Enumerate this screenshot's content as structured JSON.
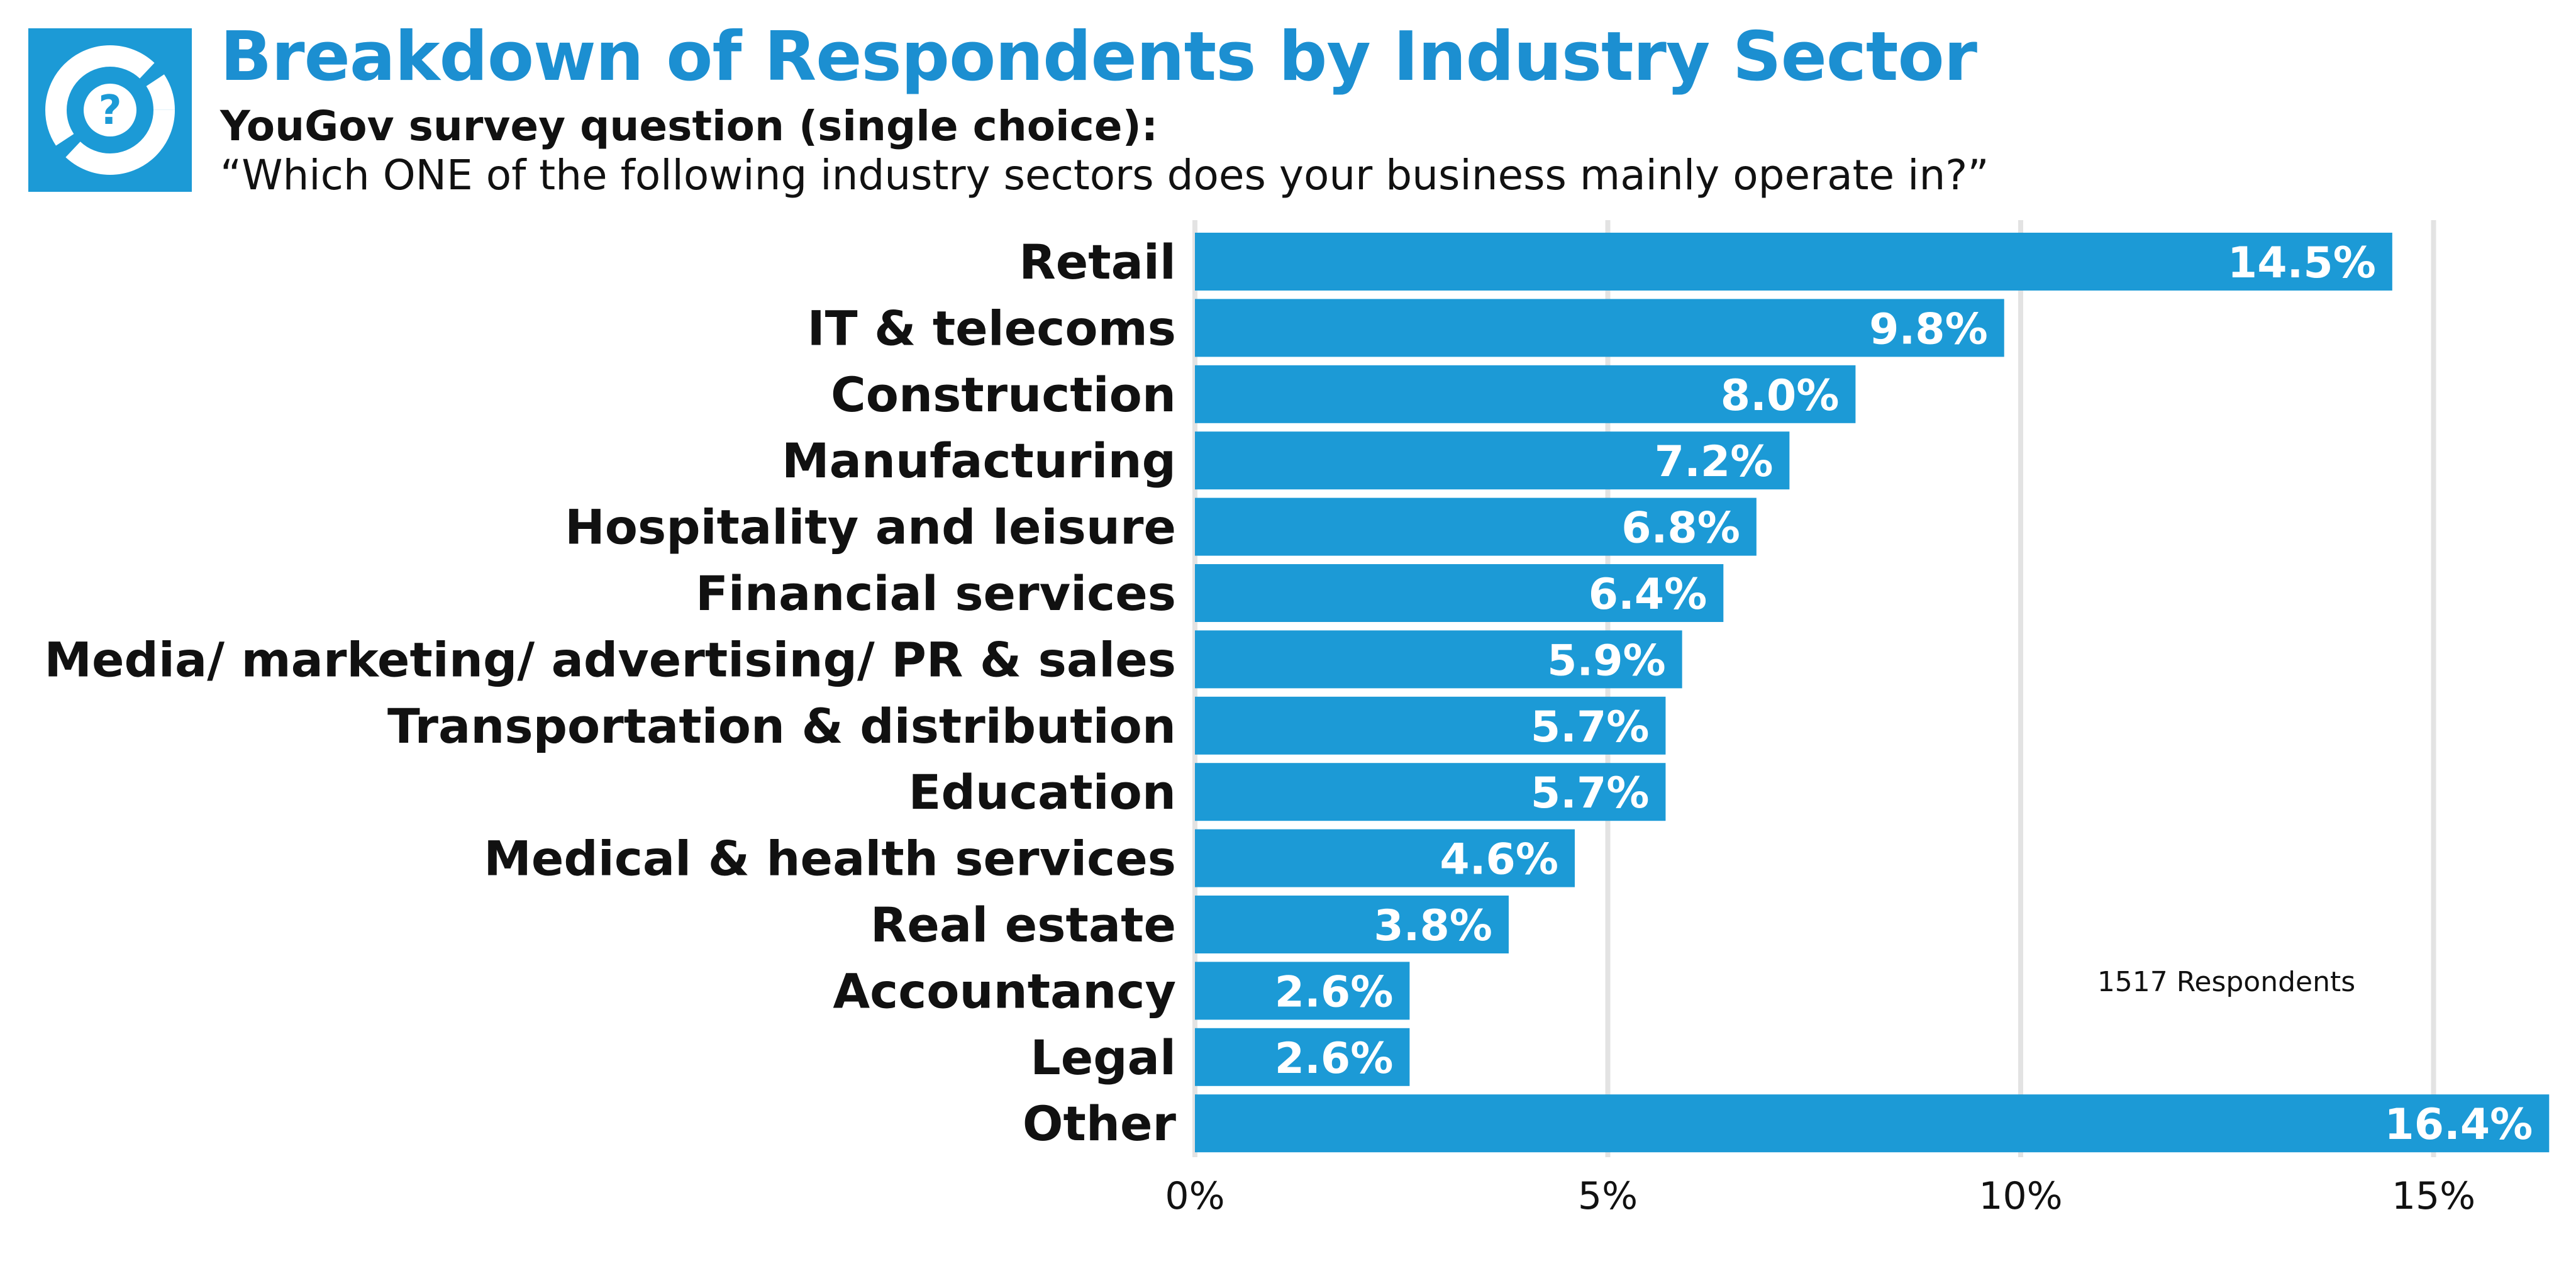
{
  "header": {
    "title": "Breakdown of Respondents by Industry Sector",
    "subtitle": "YouGov survey question (single choice):",
    "question": "“Which ONE of the following industry sectors does your business mainly operate in?”"
  },
  "colors": {
    "bar": "#1c9ad6",
    "title": "#1c8fd1",
    "logo_bg": "#1c9ad6",
    "grid": "#e3e3e3",
    "bar_label": "#ffffff",
    "text": "#111111"
  },
  "icons": {
    "logo": "question-donut-icon"
  },
  "chart_data": {
    "type": "bar",
    "orientation": "horizontal",
    "title": "Breakdown of Respondents by Industry Sector",
    "categories": [
      "Retail",
      "IT & telecoms",
      "Construction",
      "Manufacturing",
      "Hospitality and leisure",
      "Financial services",
      "Media/ marketing/ advertising/ PR & sales",
      "Transportation & distribution",
      "Education",
      "Medical & health services",
      "Real estate",
      "Accountancy",
      "Legal",
      "Other"
    ],
    "values": [
      14.5,
      9.8,
      8.0,
      7.2,
      6.8,
      6.4,
      5.9,
      5.7,
      5.7,
      4.6,
      3.8,
      2.6,
      2.6,
      16.4
    ],
    "value_labels": [
      "14.5%",
      "9.8%",
      "8.0%",
      "7.2%",
      "6.8%",
      "6.4%",
      "5.9%",
      "5.7%",
      "5.7%",
      "4.6%",
      "3.8%",
      "2.6%",
      "2.6%",
      "16.4%"
    ],
    "xlim": [
      0,
      16.4
    ],
    "x_ticks": [
      0,
      5,
      10,
      15
    ],
    "x_tick_labels": [
      "0%",
      "5%",
      "10%",
      "15%"
    ],
    "grid": "vertical",
    "annotation": "1517 Respondents"
  }
}
